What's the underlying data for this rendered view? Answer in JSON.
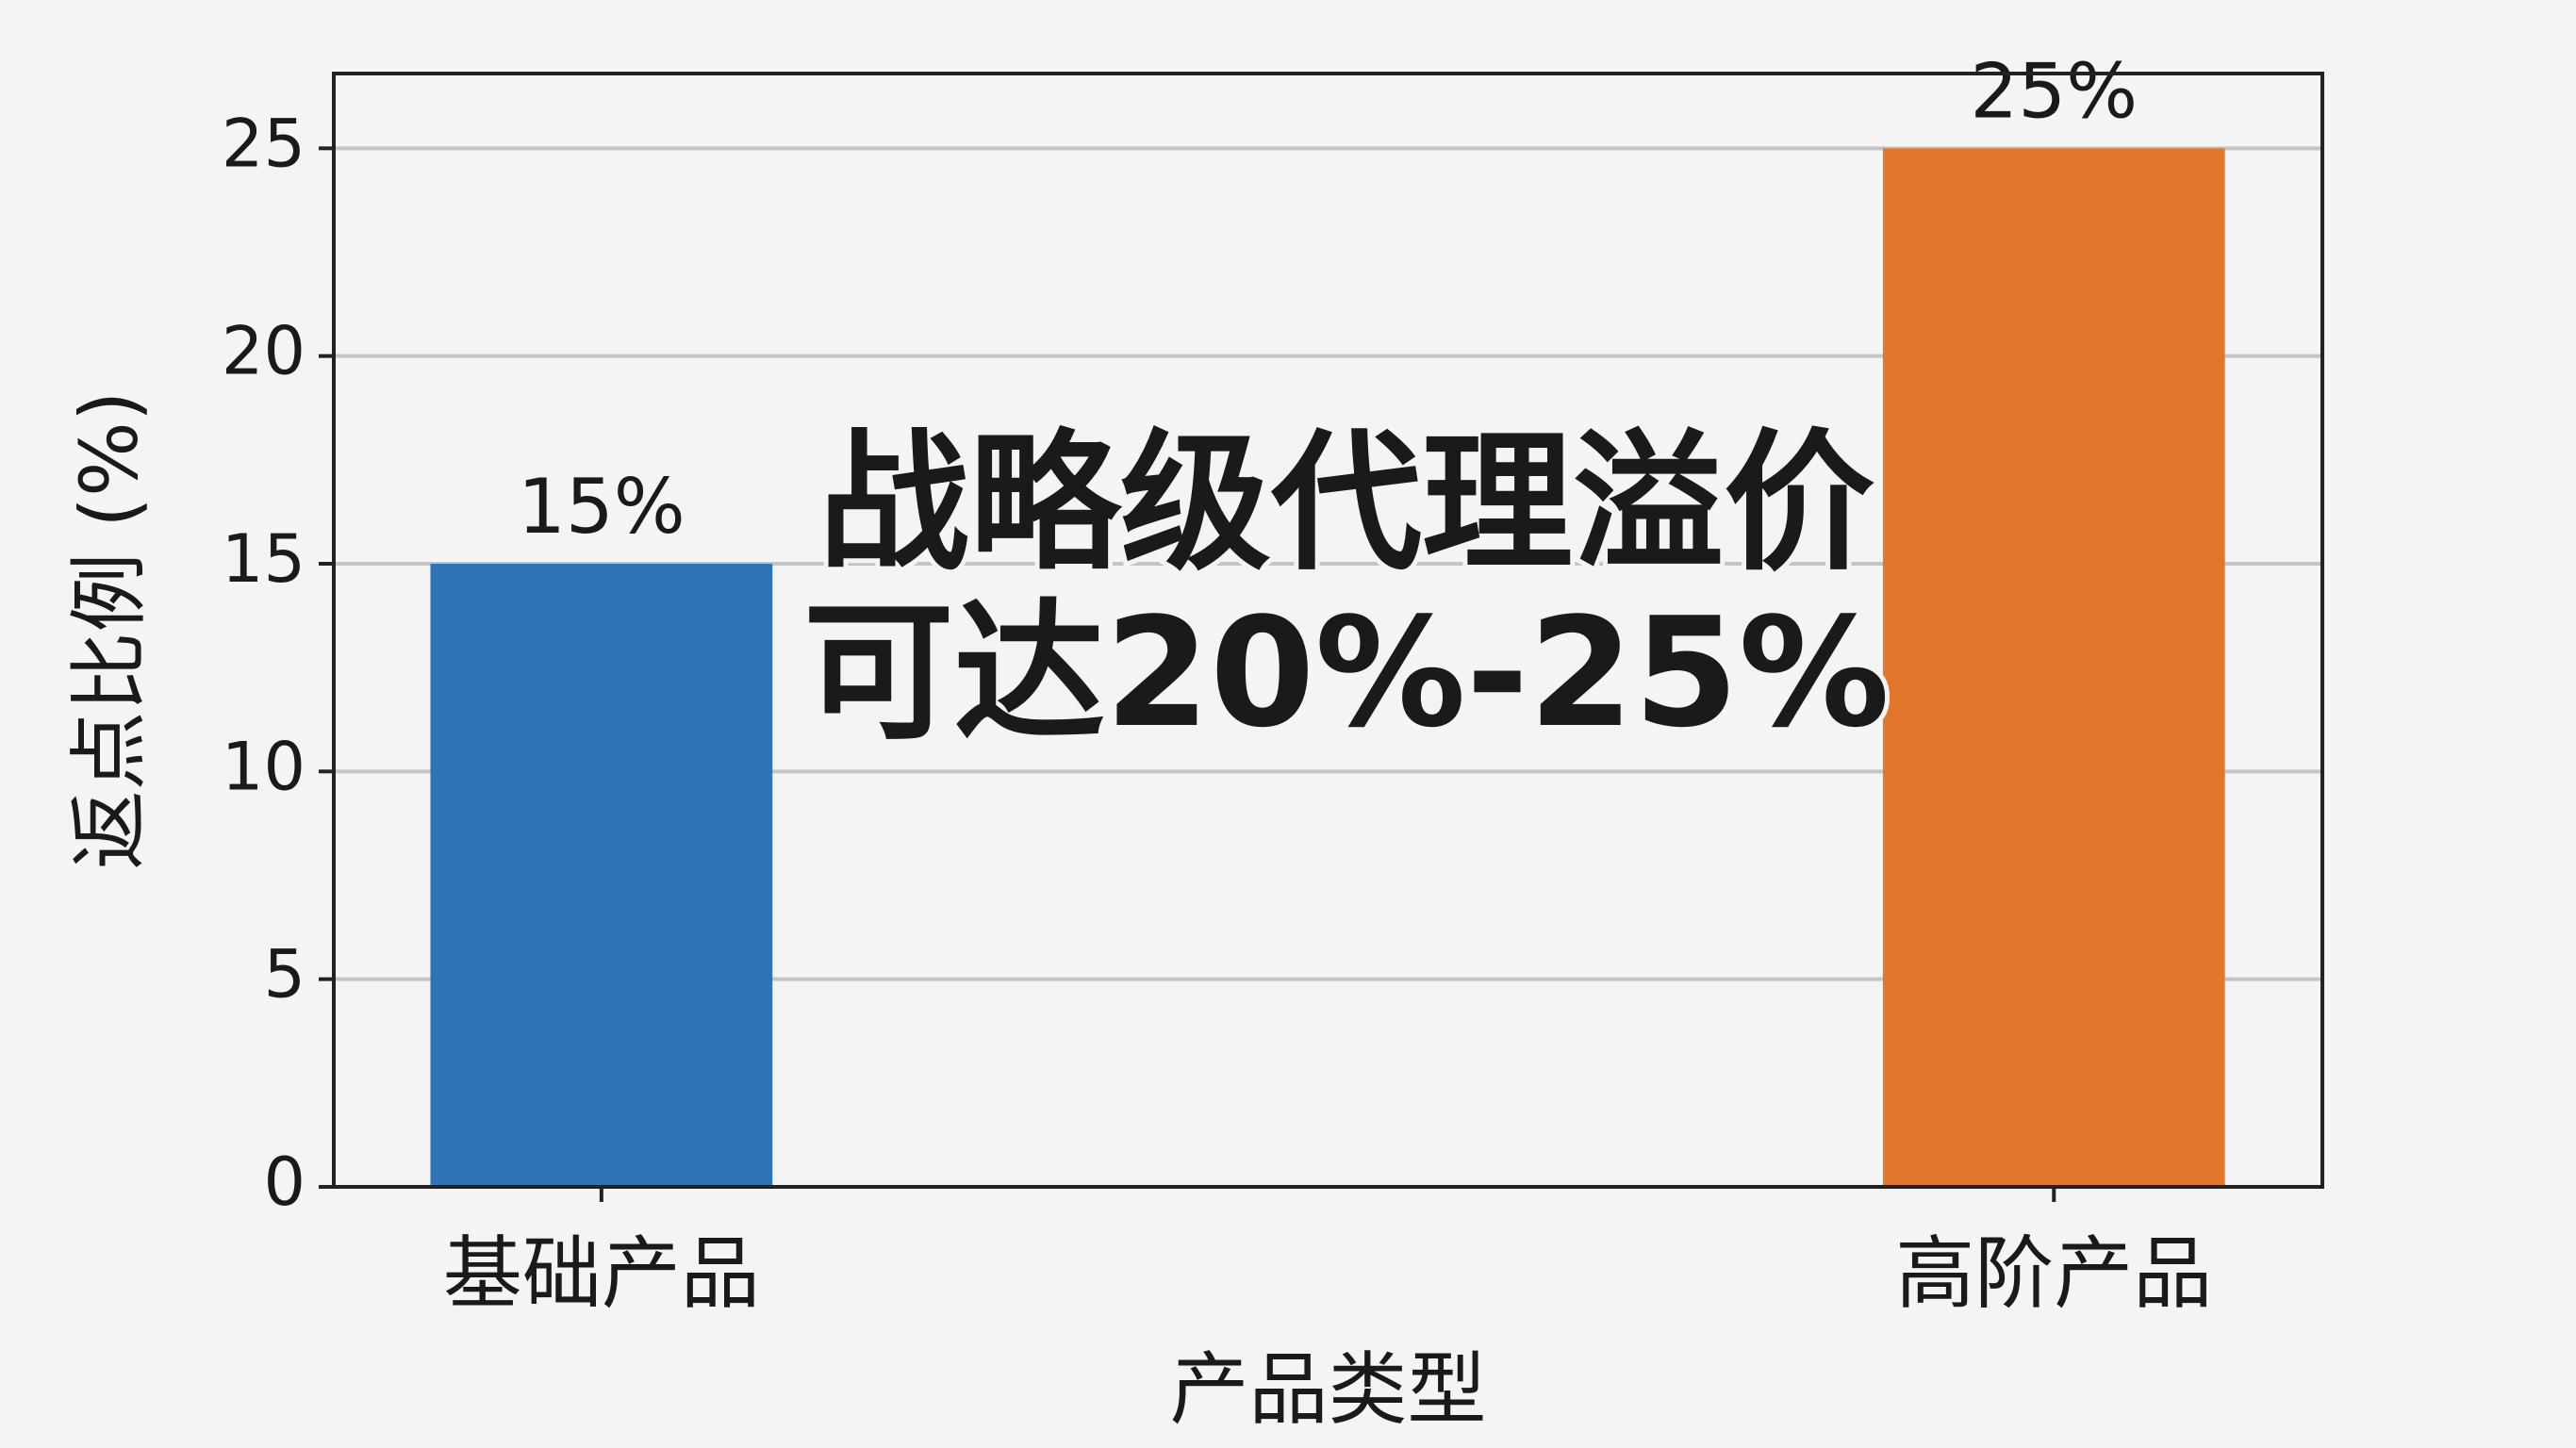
{
  "chart_data": {
    "type": "bar",
    "categories": [
      "基础产品",
      "高阶产品"
    ],
    "values": [
      15,
      25
    ],
    "value_labels": [
      "15%",
      "25%"
    ],
    "colors": [
      "#2c74b4",
      "#e2772c"
    ],
    "xlabel": "产品类型",
    "ylabel": "返点比例 (%)",
    "annotation": [
      "战略级代理溢价",
      "可达20%-25%"
    ],
    "ylim": [
      0,
      26.8
    ],
    "yticks": [
      0,
      5,
      10,
      15,
      20,
      25
    ],
    "grid": true
  }
}
